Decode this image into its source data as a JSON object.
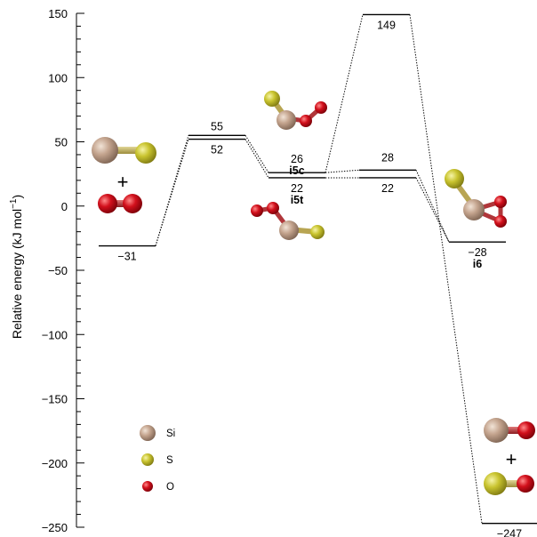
{
  "chart_data": {
    "type": "diagram",
    "ylabel": "Relative energy (kJ mol",
    "ylabel_sup": "−1",
    "ylabel_close": ")",
    "ylim": [
      -250,
      150
    ],
    "yticks": [
      {
        "value": 150,
        "label": "150"
      },
      {
        "value": 100,
        "label": "100"
      },
      {
        "value": 50,
        "label": "50"
      },
      {
        "value": 0,
        "label": "0"
      },
      {
        "value": -50,
        "label": "−50"
      },
      {
        "value": -100,
        "label": "−100"
      },
      {
        "value": -150,
        "label": "−150"
      },
      {
        "value": -200,
        "label": "−200"
      },
      {
        "value": -250,
        "label": "−250"
      }
    ],
    "levels": [
      {
        "id": "reactants",
        "energy": -31,
        "label": "−31",
        "name": "",
        "label_pos": "below"
      },
      {
        "id": "ts1_upper",
        "energy": 55,
        "label": "55",
        "name": "",
        "label_pos": "above"
      },
      {
        "id": "ts1_lower",
        "energy": 52,
        "label": "52",
        "name": "",
        "label_pos": "below"
      },
      {
        "id": "i5c",
        "energy": 26,
        "label": "26",
        "name": "i5c",
        "label_pos": "above"
      },
      {
        "id": "i5t",
        "energy": 22,
        "label": "22",
        "name": "i5t",
        "label_pos": "below"
      },
      {
        "id": "ts_upper",
        "energy": 28,
        "label": "28",
        "name": "",
        "label_pos": "above"
      },
      {
        "id": "ts_lower",
        "energy": 22,
        "label": "22",
        "name": "",
        "label_pos": "below"
      },
      {
        "id": "ts_high",
        "energy": 149,
        "label": "149",
        "name": "",
        "label_pos": "below"
      },
      {
        "id": "i6",
        "energy": -28,
        "label": "−28",
        "name": "i6",
        "label_pos": "below"
      },
      {
        "id": "products",
        "energy": -247,
        "label": "−247",
        "name": "",
        "label_pos": "below"
      }
    ],
    "connections": [
      [
        "reactants",
        "ts1_upper"
      ],
      [
        "reactants",
        "ts1_lower"
      ],
      [
        "ts1_upper",
        "i5c"
      ],
      [
        "ts1_lower",
        "i5t"
      ],
      [
        "i5c",
        "ts_upper"
      ],
      [
        "i5t",
        "ts_lower"
      ],
      [
        "i5c",
        "ts_high"
      ],
      [
        "ts_upper",
        "i6"
      ],
      [
        "ts_lower",
        "i6"
      ],
      [
        "ts_high",
        "products"
      ]
    ],
    "legend": [
      {
        "symbol": "Si",
        "label": "Si",
        "color": "#c4a48e"
      },
      {
        "symbol": "S",
        "label": "S",
        "color": "#c9c42f"
      },
      {
        "symbol": "O",
        "label": "O",
        "color": "#d2101c"
      }
    ],
    "plus_sign": "+",
    "colors": {
      "si": "#c4a48e",
      "s": "#c9c42f",
      "o": "#d2101c",
      "bond_si_s": "#c3b35a",
      "bond_o": "#b0363a"
    }
  }
}
